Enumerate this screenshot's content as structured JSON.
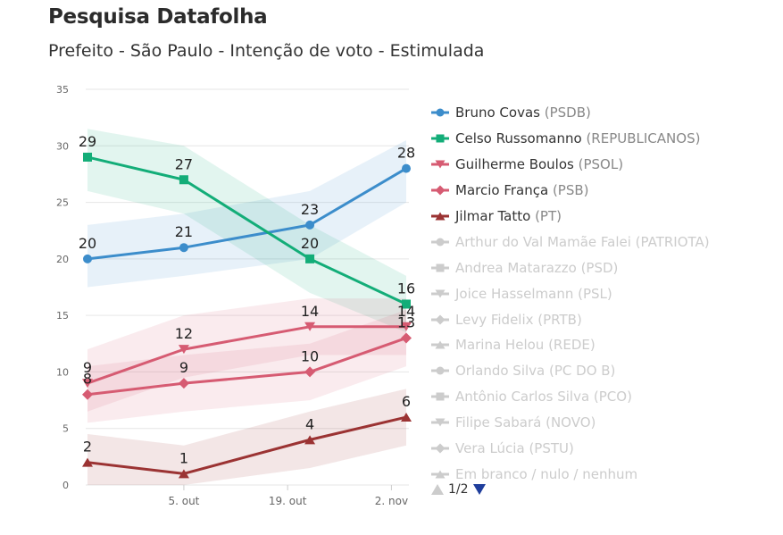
{
  "title": "Pesquisa Datafolha",
  "subtitle": "Prefeito - São Paulo - Intenção de voto - Estimulada",
  "pager": {
    "text": "1/2"
  },
  "chart_data": {
    "type": "line",
    "x": [
      "2020-09-22",
      "2020-10-05",
      "2020-10-22",
      "2020-11-04"
    ],
    "x_ticks": [
      "5. out",
      "19. out",
      "2. nov"
    ],
    "x_tick_dates": [
      "2020-10-05",
      "2020-10-19",
      "2020-11-02"
    ],
    "ylim": [
      0,
      35
    ],
    "y_ticks": [
      "0",
      "5",
      "10",
      "15",
      "20",
      "25",
      "30",
      "35"
    ],
    "grid": true,
    "legend_position": "right",
    "series": [
      {
        "name": "Bruno Covas",
        "party": "(PSDB)",
        "values": [
          20,
          21,
          23,
          28
        ],
        "color": "#3c8dcb",
        "marker": "circle",
        "visible": true,
        "band_low": [
          17.5,
          18.5,
          20,
          25
        ],
        "band_high": [
          23,
          24,
          26,
          30.5
        ]
      },
      {
        "name": "Celso Russomanno",
        "party": "(REPUBLICANOS)",
        "values": [
          29,
          27,
          20,
          16
        ],
        "color": "#13ad78",
        "marker": "square",
        "visible": true,
        "band_low": [
          26,
          24,
          17,
          13.5
        ],
        "band_high": [
          31.5,
          30,
          23,
          18.5
        ]
      },
      {
        "name": "Guilherme Boulos",
        "party": "(PSOL)",
        "values": [
          9,
          12,
          14,
          14
        ],
        "color": "#d65b72",
        "marker": "triangle-down",
        "visible": true,
        "band_low": [
          6.5,
          9.5,
          11.5,
          11.5
        ],
        "band_high": [
          12,
          15,
          16.5,
          16.5
        ]
      },
      {
        "name": "Marcio França",
        "party": "(PSB)",
        "values": [
          8,
          9,
          10,
          13
        ],
        "color": "#d65b72",
        "marker": "diamond",
        "visible": true,
        "band_low": [
          5.5,
          6.5,
          7.5,
          10.5
        ],
        "band_high": [
          10.5,
          11.5,
          12.5,
          15.5
        ]
      },
      {
        "name": "Jilmar Tatto",
        "party": "(PT)",
        "values": [
          2,
          1,
          4,
          6
        ],
        "color": "#9b3333",
        "marker": "triangle",
        "visible": true,
        "band_low": [
          0,
          0,
          1.5,
          3.5
        ],
        "band_high": [
          4.5,
          3.5,
          6.5,
          8.5
        ]
      },
      {
        "name": "Arthur do Val Mamãe Falei",
        "party": "(PATRIOTA)",
        "color": "#cccccc",
        "marker": "circle",
        "visible": false
      },
      {
        "name": "Andrea Matarazzo",
        "party": "(PSD)",
        "color": "#cccccc",
        "marker": "square",
        "visible": false
      },
      {
        "name": "Joice Hasselmann",
        "party": "(PSL)",
        "color": "#cccccc",
        "marker": "triangle-down",
        "visible": false
      },
      {
        "name": "Levy Fidelix",
        "party": "(PRTB)",
        "color": "#cccccc",
        "marker": "diamond",
        "visible": false
      },
      {
        "name": "Marina Helou",
        "party": "(REDE)",
        "color": "#cccccc",
        "marker": "triangle",
        "visible": false
      },
      {
        "name": "Orlando Silva",
        "party": "(PC DO B)",
        "color": "#cccccc",
        "marker": "circle",
        "visible": false
      },
      {
        "name": "Antônio Carlos Silva",
        "party": "(PCO)",
        "color": "#cccccc",
        "marker": "square",
        "visible": false
      },
      {
        "name": "Filipe Sabará",
        "party": "(NOVO)",
        "color": "#cccccc",
        "marker": "triangle-down",
        "visible": false
      },
      {
        "name": "Vera Lúcia",
        "party": "(PSTU)",
        "color": "#cccccc",
        "marker": "diamond",
        "visible": false
      },
      {
        "name": "Em branco / nulo / nenhum",
        "party": "",
        "color": "#cccccc",
        "marker": "triangle",
        "visible": false
      }
    ]
  }
}
